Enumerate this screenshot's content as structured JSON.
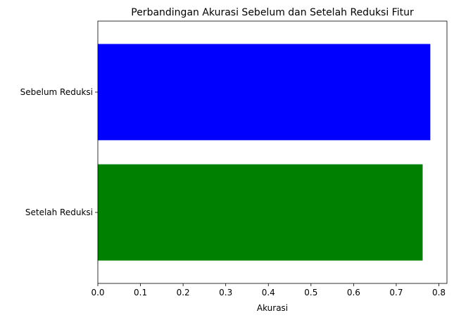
{
  "chart_data": {
    "type": "bar",
    "orientation": "horizontal",
    "title": "Perbandingan Akurasi Sebelum dan Setelah Reduksi Fitur",
    "xlabel": "Akurasi",
    "ylabel": "",
    "categories": [
      "Sebelum Reduksi",
      "Setelah Reduksi"
    ],
    "values": [
      0.78,
      0.762
    ],
    "colors": [
      "#0000ff",
      "#008000"
    ],
    "xlim": [
      0,
      0.819
    ],
    "xticks": [
      0.0,
      0.1,
      0.2,
      0.3,
      0.4,
      0.5,
      0.6,
      0.7,
      0.8
    ],
    "xtick_labels": [
      "0.0",
      "0.1",
      "0.2",
      "0.3",
      "0.4",
      "0.5",
      "0.6",
      "0.7",
      "0.8"
    ],
    "grid": false,
    "legend": "none"
  }
}
